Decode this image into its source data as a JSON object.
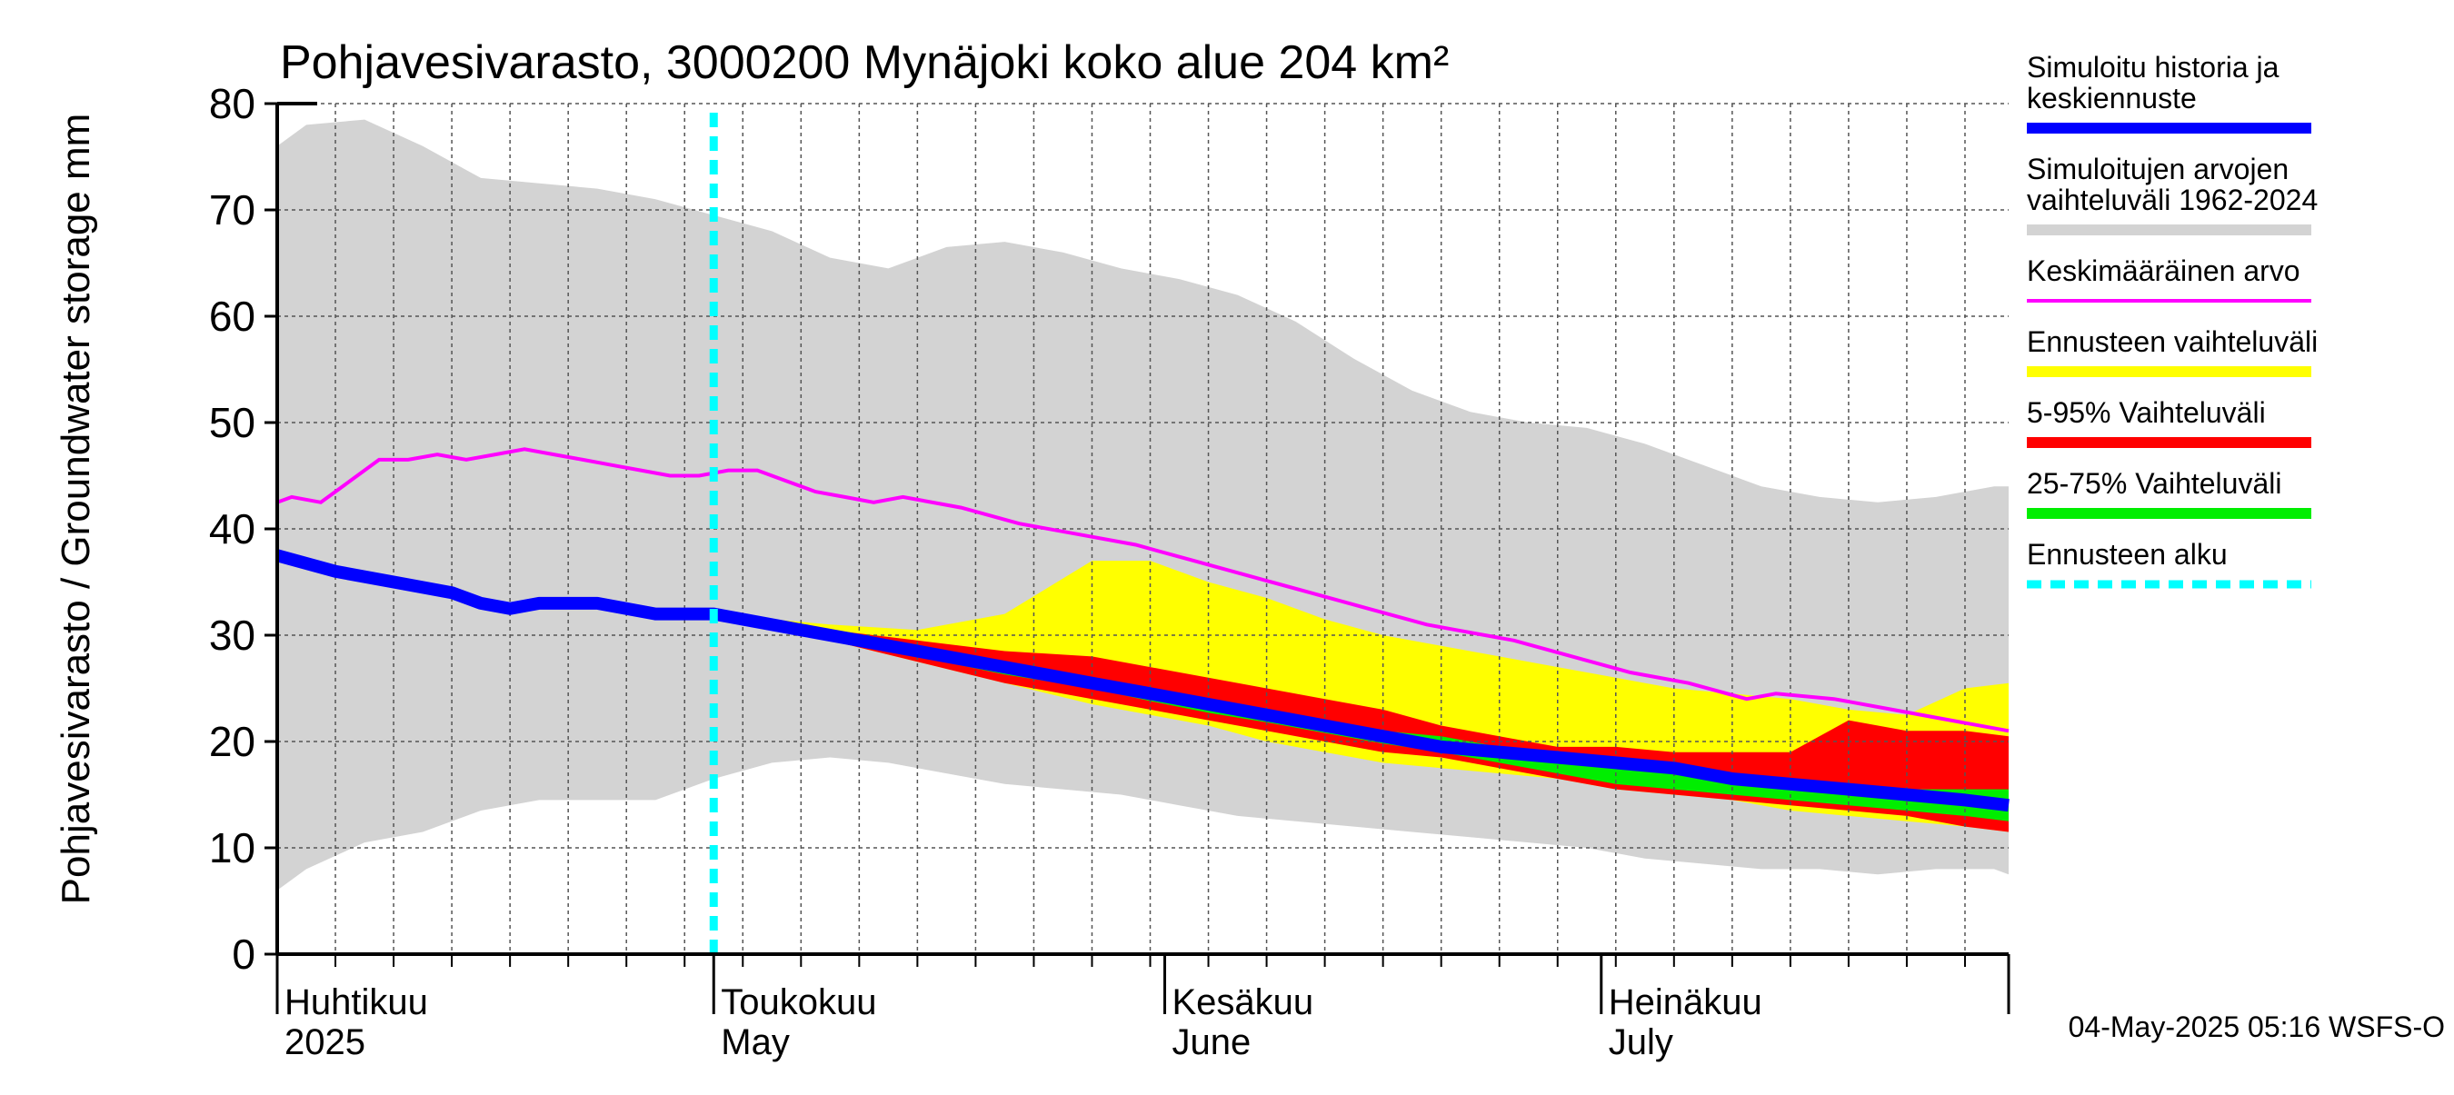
{
  "chart_data": {
    "type": "area",
    "title": "Pohjavesivarasto, 3000200 Mynäjoki koko alue 204 km²",
    "ylabel": "Pohjavesivarasto / Groundwater storage   mm",
    "ylim": [
      0,
      80
    ],
    "yticks": [
      0,
      10,
      20,
      30,
      40,
      50,
      60,
      70,
      80
    ],
    "x_start_day": 0,
    "x_end_day": 119,
    "grid": true,
    "months": [
      {
        "day": 0,
        "fi": "Huhtikuu",
        "en": "2025"
      },
      {
        "day": 30,
        "fi": "Toukokuu",
        "en": "May"
      },
      {
        "day": 61,
        "fi": "Kesäkuu",
        "en": "June"
      },
      {
        "day": 91,
        "fi": "Heinäkuu",
        "en": "July"
      }
    ],
    "forecast_start_day": 30,
    "series": {
      "sim_range": {
        "name": "Simuloitujen arvojen vaihteluväli 1962-2024",
        "days": [
          0,
          2,
          6,
          10,
          14,
          18,
          22,
          26,
          30,
          34,
          38,
          42,
          46,
          50,
          54,
          58,
          62,
          66,
          70,
          74,
          78,
          82,
          86,
          90,
          94,
          98,
          102,
          106,
          110,
          114,
          118,
          119
        ],
        "upper": [
          76,
          78,
          78.5,
          76,
          73,
          72.5,
          72,
          71,
          69.5,
          68,
          65.5,
          64.5,
          66.5,
          67,
          66,
          64.5,
          63.5,
          62,
          59.5,
          56,
          53,
          51,
          50,
          49.5,
          48,
          46,
          44,
          43,
          42.5,
          43,
          44,
          44
        ],
        "lower": [
          6,
          8,
          10.5,
          11.5,
          13.5,
          14.5,
          14.5,
          14.5,
          16.5,
          18,
          18.5,
          18,
          17,
          16,
          15.5,
          15,
          14,
          13,
          12.5,
          12,
          11.5,
          11,
          10.5,
          10,
          9,
          8.5,
          8,
          8,
          7.5,
          8,
          8,
          7.5
        ]
      },
      "forecast_range": {
        "name": "Ennusteen vaihteluväli",
        "days": [
          30,
          38,
          44,
          50,
          56,
          60,
          64,
          68,
          72,
          76,
          80,
          84,
          88,
          92,
          96,
          100,
          104,
          108,
          112,
          116,
          119
        ],
        "upper": [
          32,
          31,
          30.5,
          32,
          37,
          37,
          35,
          33.5,
          31.5,
          30,
          29,
          28,
          27,
          26,
          25,
          24.5,
          24,
          23,
          22.5,
          25,
          25.5
        ],
        "lower": [
          32,
          29.5,
          27.5,
          25.5,
          23.5,
          22.5,
          21.5,
          20,
          19,
          18,
          17.5,
          17,
          16.5,
          15.5,
          15,
          14.5,
          13.5,
          13,
          12.5,
          12,
          11.5
        ]
      },
      "p5_95": {
        "name": "5-95% Vaihteluväli",
        "days": [
          30,
          38,
          44,
          50,
          56,
          60,
          64,
          68,
          72,
          76,
          80,
          84,
          88,
          92,
          96,
          100,
          104,
          108,
          112,
          116,
          119
        ],
        "upper": [
          32,
          30.5,
          29.5,
          28.5,
          28,
          27,
          26,
          25,
          24,
          23,
          21.5,
          20.5,
          19.5,
          19.5,
          19,
          19,
          19,
          22,
          21,
          21,
          20.5
        ],
        "lower": [
          32,
          29.5,
          27.5,
          25.5,
          24,
          23,
          22,
          21,
          20,
          19,
          18.5,
          17.5,
          16.5,
          15.5,
          15,
          14.5,
          14,
          13.5,
          13,
          12,
          11.5
        ]
      },
      "p25_75": {
        "name": "25-75% Vaihteluväli",
        "days": [
          30,
          38,
          44,
          50,
          56,
          60,
          64,
          68,
          72,
          76,
          80,
          84,
          88,
          92,
          96,
          100,
          104,
          108,
          112,
          116,
          119
        ],
        "upper": [
          32,
          30,
          28.5,
          27.2,
          26,
          25,
          24,
          23,
          22,
          21,
          20.5,
          19.5,
          18.5,
          17.5,
          17,
          16.5,
          16,
          16,
          15.5,
          15.5,
          15.5
        ],
        "lower": [
          32,
          29.7,
          28,
          26.3,
          25,
          23.8,
          22.7,
          21.8,
          20.8,
          19.8,
          19,
          18,
          17,
          16,
          15.5,
          15,
          14.5,
          14,
          13.5,
          13,
          12.5
        ]
      },
      "mean": {
        "name": "Keskimääräinen arvo",
        "days": [
          0,
          1,
          3,
          5,
          7,
          9,
          11,
          13,
          15,
          17,
          19,
          21,
          23,
          25,
          27,
          29,
          31,
          33,
          35,
          37,
          39,
          41,
          43,
          47,
          51,
          55,
          59,
          63,
          67,
          71,
          75,
          79,
          81,
          85,
          89,
          93,
          97,
          101,
          103,
          107,
          111,
          115,
          119
        ],
        "values": [
          42.5,
          43,
          42.5,
          44.5,
          46.5,
          46.5,
          47,
          46.5,
          47,
          47.5,
          47,
          46.5,
          46,
          45.5,
          45,
          45,
          45.5,
          45.5,
          44.5,
          43.5,
          43,
          42.5,
          43,
          42,
          40.5,
          39.5,
          38.5,
          37,
          35.5,
          34,
          32.5,
          31,
          30.5,
          29.5,
          28,
          26.5,
          25.5,
          24,
          24.5,
          24,
          23,
          22,
          21
        ]
      },
      "history": {
        "name": "Simuloitu historia ja keskiennuste",
        "days": [
          0,
          4,
          8,
          12,
          14,
          16,
          18,
          20,
          22,
          24,
          26,
          27,
          28,
          30,
          32,
          36,
          40,
          44,
          48,
          52,
          56,
          60,
          64,
          68,
          72,
          76,
          80,
          84,
          88,
          92,
          96,
          100,
          104,
          108,
          112,
          116,
          119
        ],
        "values": [
          37.5,
          36,
          35,
          34,
          33,
          32.5,
          33,
          33,
          33,
          32.5,
          32,
          32,
          32,
          32,
          31.5,
          30.5,
          29.5,
          28.5,
          27.5,
          26.5,
          25.5,
          24.5,
          23.5,
          22.5,
          21.5,
          20.5,
          19.5,
          19,
          18.5,
          18,
          17.5,
          16.5,
          16,
          15.5,
          15,
          14.5,
          14
        ]
      }
    },
    "legend": [
      {
        "label_lines": [
          "Simuloitu historia ja",
          "keskiennuste"
        ],
        "color": "#0000ff",
        "style": "thick"
      },
      {
        "label_lines": [
          "Simuloitujen arvojen",
          "vaihteluväli 1962-2024"
        ],
        "color": "#d3d3d3",
        "style": "thick"
      },
      {
        "label_lines": [
          "Keskimääräinen arvo"
        ],
        "color": "#ff00ff",
        "style": "thin"
      },
      {
        "label_lines": [
          "Ennusteen vaihteluväli"
        ],
        "color": "#ffff00",
        "style": "thick"
      },
      {
        "label_lines": [
          "5-95% Vaihteluväli"
        ],
        "color": "#ff0000",
        "style": "thick"
      },
      {
        "label_lines": [
          "25-75% Vaihteluväli"
        ],
        "color": "#00ee00",
        "style": "thick"
      },
      {
        "label_lines": [
          "Ennusteen alku"
        ],
        "color": "#00ffff",
        "style": "dashed"
      }
    ],
    "colors": {
      "sim_range": "#d3d3d3",
      "forecast_range": "#ffff00",
      "p5_95": "#ff0000",
      "p25_75": "#00ee00",
      "mean": "#ff00ff",
      "history": "#0000ff",
      "forecast_start": "#00ffff",
      "grid": "#555555"
    },
    "timestamp": "04-May-2025 05:16 WSFS-O"
  }
}
